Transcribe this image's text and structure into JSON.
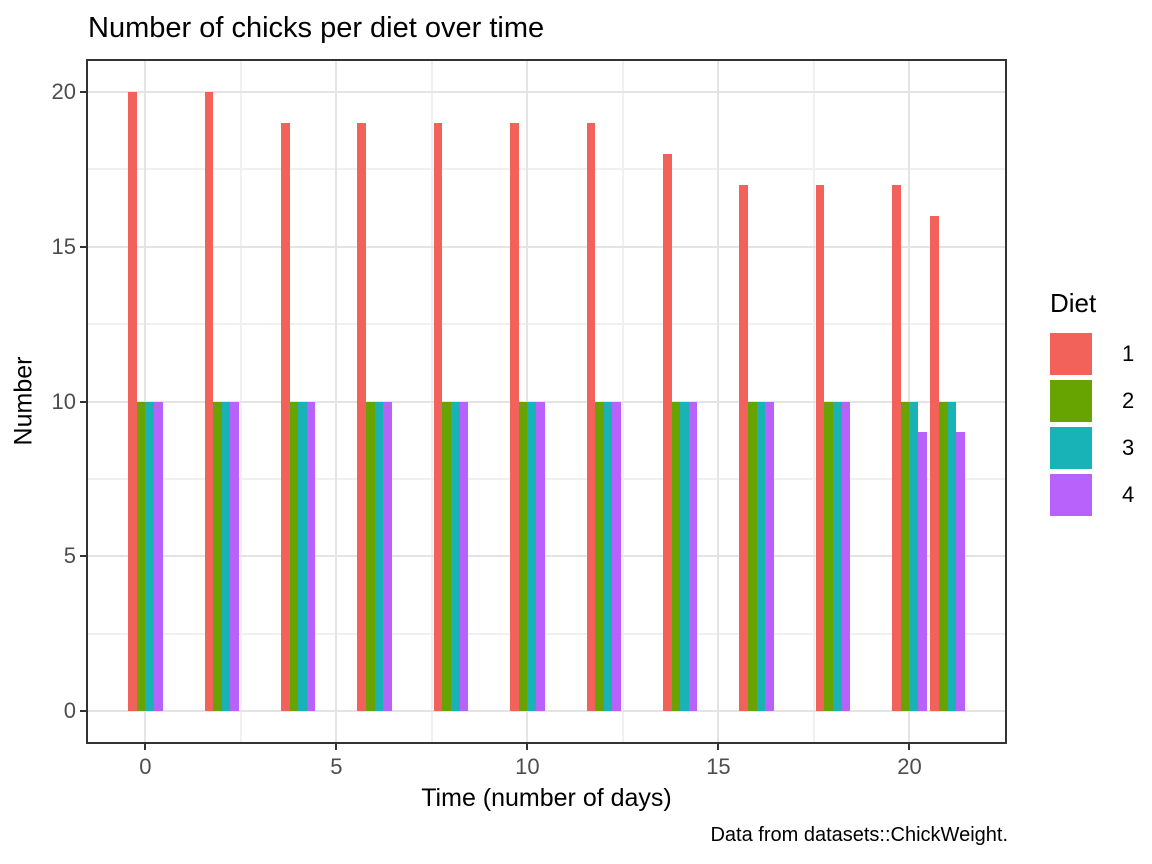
{
  "chart_data": {
    "type": "bar",
    "title": "Number of chicks per diet over time",
    "xlabel": "Time (number of days)",
    "ylabel": "Number",
    "caption": "Data from datasets::ChickWeight.",
    "x": [
      0,
      2,
      4,
      6,
      8,
      10,
      12,
      14,
      16,
      18,
      20,
      21
    ],
    "series": [
      {
        "name": "1",
        "color": "#F3615B",
        "values": [
          20,
          20,
          19,
          19,
          19,
          19,
          19,
          18,
          17,
          17,
          17,
          16
        ]
      },
      {
        "name": "2",
        "color": "#67A401",
        "values": [
          10,
          10,
          10,
          10,
          10,
          10,
          10,
          10,
          10,
          10,
          10,
          10
        ]
      },
      {
        "name": "3",
        "color": "#17B3B7",
        "values": [
          10,
          10,
          10,
          10,
          10,
          10,
          10,
          10,
          10,
          10,
          10,
          10
        ]
      },
      {
        "name": "4",
        "color": "#B961FB",
        "values": [
          10,
          10,
          10,
          10,
          10,
          10,
          10,
          10,
          10,
          10,
          9,
          9
        ]
      }
    ],
    "x_ticks": [
      0,
      5,
      10,
      15,
      20
    ],
    "y_ticks": [
      0,
      5,
      10,
      15,
      20
    ],
    "xlim": [
      -1.5,
      22.5
    ],
    "ylim": [
      -1,
      21
    ],
    "bar_width": 0.225,
    "grid": true,
    "legend_position": "right",
    "legend": {
      "title": "Diet",
      "entries": [
        "1",
        "2",
        "3",
        "4"
      ]
    },
    "colors": {
      "grid_major": "#e4e4e4",
      "grid_minor": "#f0f0f0",
      "panel_border": "#333333",
      "tick_text": "#4d4d4d"
    }
  }
}
